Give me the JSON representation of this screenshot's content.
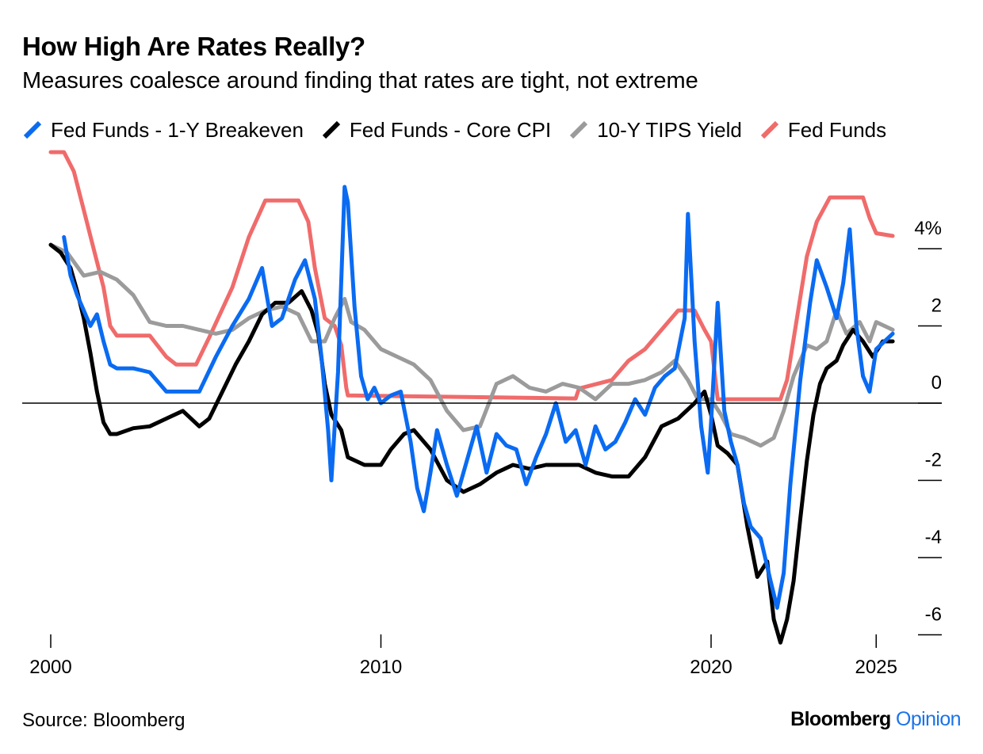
{
  "colors": {
    "fed_funds_1y_breakeven": "#0a6bf2",
    "fed_funds_core_cpi": "#000000",
    "tips_10y": "#9b9b9b",
    "fed_funds": "#f06b6b",
    "brand_blue": "#1a73e8"
  },
  "footer": {
    "source": "Source: Bloomberg",
    "brand_main": "Bloomberg",
    "brand_sub": "Opinion"
  },
  "chart_data": {
    "type": "line",
    "title": "How High Are Rates Really?",
    "subtitle": "Measures coalesce around finding that rates are tight, not extreme",
    "xlim": [
      1999.6,
      2026.4
    ],
    "ylim": [
      -6.3,
      6.6
    ],
    "x_ticks": [
      2000,
      2010,
      2020,
      2025
    ],
    "x_tick_labels": [
      "2000",
      "2010",
      "2020",
      "2025"
    ],
    "y_ticks": [
      4,
      2,
      0,
      -2,
      -4,
      -6
    ],
    "y_tick_labels": [
      "4%",
      "2",
      "0",
      "-2",
      "-4",
      "-6"
    ],
    "zero_line": true,
    "grid": false,
    "legend_position": "top-left",
    "series": [
      {
        "name": "Fed Funds",
        "color_key": "fed_funds",
        "points": [
          [
            2000.0,
            6.5
          ],
          [
            2000.4,
            6.5
          ],
          [
            2000.7,
            6.0
          ],
          [
            2001.0,
            5.0
          ],
          [
            2001.3,
            4.0
          ],
          [
            2001.6,
            3.0
          ],
          [
            2001.8,
            2.0
          ],
          [
            2002.0,
            1.75
          ],
          [
            2003.0,
            1.75
          ],
          [
            2003.5,
            1.2
          ],
          [
            2003.8,
            1.0
          ],
          [
            2004.4,
            1.0
          ],
          [
            2004.8,
            1.7
          ],
          [
            2005.5,
            3.0
          ],
          [
            2006.0,
            4.3
          ],
          [
            2006.5,
            5.25
          ],
          [
            2007.5,
            5.25
          ],
          [
            2007.8,
            4.7
          ],
          [
            2008.0,
            3.5
          ],
          [
            2008.3,
            2.2
          ],
          [
            2008.6,
            2.0
          ],
          [
            2008.8,
            1.5
          ],
          [
            2008.95,
            0.4
          ],
          [
            2009.0,
            0.2
          ],
          [
            2015.9,
            0.12
          ],
          [
            2016.0,
            0.38
          ],
          [
            2017.0,
            0.6
          ],
          [
            2017.5,
            1.1
          ],
          [
            2018.0,
            1.4
          ],
          [
            2018.5,
            1.9
          ],
          [
            2019.0,
            2.4
          ],
          [
            2019.5,
            2.4
          ],
          [
            2019.8,
            1.9
          ],
          [
            2020.0,
            1.6
          ],
          [
            2020.2,
            0.1
          ],
          [
            2022.1,
            0.1
          ],
          [
            2022.3,
            0.6
          ],
          [
            2022.6,
            2.2
          ],
          [
            2022.9,
            3.8
          ],
          [
            2023.2,
            4.7
          ],
          [
            2023.6,
            5.33
          ],
          [
            2024.6,
            5.33
          ],
          [
            2024.8,
            4.8
          ],
          [
            2025.0,
            4.4
          ],
          [
            2025.5,
            4.33
          ]
        ]
      },
      {
        "name": "10-Y TIPS Yield",
        "color_key": "tips_10y",
        "points": [
          [
            2000.0,
            4.1
          ],
          [
            2000.5,
            3.9
          ],
          [
            2001.0,
            3.3
          ],
          [
            2001.5,
            3.4
          ],
          [
            2002.0,
            3.2
          ],
          [
            2002.5,
            2.8
          ],
          [
            2003.0,
            2.1
          ],
          [
            2003.5,
            2.0
          ],
          [
            2004.0,
            2.0
          ],
          [
            2004.5,
            1.9
          ],
          [
            2005.0,
            1.8
          ],
          [
            2005.5,
            1.9
          ],
          [
            2006.0,
            2.2
          ],
          [
            2006.5,
            2.4
          ],
          [
            2007.0,
            2.5
          ],
          [
            2007.5,
            2.3
          ],
          [
            2007.9,
            1.6
          ],
          [
            2008.3,
            1.6
          ],
          [
            2008.6,
            2.2
          ],
          [
            2008.9,
            2.7
          ],
          [
            2009.1,
            2.1
          ],
          [
            2009.5,
            1.9
          ],
          [
            2010.0,
            1.4
          ],
          [
            2010.5,
            1.2
          ],
          [
            2011.0,
            1.0
          ],
          [
            2011.5,
            0.6
          ],
          [
            2012.0,
            -0.2
          ],
          [
            2012.5,
            -0.7
          ],
          [
            2013.0,
            -0.6
          ],
          [
            2013.5,
            0.5
          ],
          [
            2014.0,
            0.7
          ],
          [
            2014.5,
            0.4
          ],
          [
            2015.0,
            0.3
          ],
          [
            2015.5,
            0.5
          ],
          [
            2016.0,
            0.4
          ],
          [
            2016.5,
            0.1
          ],
          [
            2017.0,
            0.5
          ],
          [
            2017.5,
            0.5
          ],
          [
            2018.0,
            0.6
          ],
          [
            2018.5,
            0.8
          ],
          [
            2018.9,
            1.1
          ],
          [
            2019.3,
            0.6
          ],
          [
            2019.6,
            0.1
          ],
          [
            2020.0,
            0.1
          ],
          [
            2020.3,
            -0.3
          ],
          [
            2020.6,
            -0.8
          ],
          [
            2021.0,
            -0.9
          ],
          [
            2021.5,
            -1.1
          ],
          [
            2021.9,
            -0.9
          ],
          [
            2022.2,
            -0.2
          ],
          [
            2022.5,
            0.7
          ],
          [
            2022.9,
            1.5
          ],
          [
            2023.2,
            1.4
          ],
          [
            2023.5,
            1.6
          ],
          [
            2023.8,
            2.4
          ],
          [
            2024.1,
            1.8
          ],
          [
            2024.5,
            2.1
          ],
          [
            2024.8,
            1.6
          ],
          [
            2025.0,
            2.1
          ],
          [
            2025.5,
            1.9
          ]
        ]
      },
      {
        "name": "Fed Funds - Core CPI",
        "color_key": "fed_funds_core_cpi",
        "points": [
          [
            2000.0,
            4.1
          ],
          [
            2000.3,
            3.9
          ],
          [
            2000.6,
            3.5
          ],
          [
            2000.8,
            2.9
          ],
          [
            2001.0,
            2.2
          ],
          [
            2001.2,
            1.3
          ],
          [
            2001.4,
            0.3
          ],
          [
            2001.6,
            -0.5
          ],
          [
            2001.8,
            -0.8
          ],
          [
            2002.0,
            -0.8
          ],
          [
            2002.5,
            -0.65
          ],
          [
            2003.0,
            -0.6
          ],
          [
            2003.5,
            -0.4
          ],
          [
            2004.0,
            -0.2
          ],
          [
            2004.5,
            -0.6
          ],
          [
            2004.8,
            -0.4
          ],
          [
            2005.2,
            0.3
          ],
          [
            2005.6,
            1.0
          ],
          [
            2006.0,
            1.6
          ],
          [
            2006.4,
            2.3
          ],
          [
            2006.8,
            2.6
          ],
          [
            2007.2,
            2.6
          ],
          [
            2007.6,
            2.9
          ],
          [
            2007.9,
            2.4
          ],
          [
            2008.1,
            1.8
          ],
          [
            2008.3,
            0.5
          ],
          [
            2008.5,
            -0.3
          ],
          [
            2008.8,
            -0.7
          ],
          [
            2009.0,
            -1.4
          ],
          [
            2009.5,
            -1.6
          ],
          [
            2010.0,
            -1.6
          ],
          [
            2010.3,
            -1.2
          ],
          [
            2010.7,
            -0.8
          ],
          [
            2011.0,
            -0.7
          ],
          [
            2011.5,
            -1.2
          ],
          [
            2012.0,
            -2.0
          ],
          [
            2012.5,
            -2.3
          ],
          [
            2013.0,
            -2.1
          ],
          [
            2013.5,
            -1.8
          ],
          [
            2014.0,
            -1.6
          ],
          [
            2014.5,
            -1.7
          ],
          [
            2015.0,
            -1.6
          ],
          [
            2015.5,
            -1.6
          ],
          [
            2016.0,
            -1.6
          ],
          [
            2016.5,
            -1.8
          ],
          [
            2017.0,
            -1.9
          ],
          [
            2017.5,
            -1.9
          ],
          [
            2018.0,
            -1.4
          ],
          [
            2018.5,
            -0.6
          ],
          [
            2019.0,
            -0.4
          ],
          [
            2019.5,
            0.0
          ],
          [
            2019.8,
            0.3
          ],
          [
            2020.0,
            -0.3
          ],
          [
            2020.2,
            -1.1
          ],
          [
            2020.5,
            -1.3
          ],
          [
            2020.8,
            -1.6
          ],
          [
            2021.1,
            -3.2
          ],
          [
            2021.4,
            -4.5
          ],
          [
            2021.7,
            -4.1
          ],
          [
            2021.9,
            -5.6
          ],
          [
            2022.1,
            -6.2
          ],
          [
            2022.3,
            -5.6
          ],
          [
            2022.5,
            -4.6
          ],
          [
            2022.7,
            -3.0
          ],
          [
            2022.9,
            -1.5
          ],
          [
            2023.1,
            -0.3
          ],
          [
            2023.3,
            0.5
          ],
          [
            2023.5,
            0.9
          ],
          [
            2023.8,
            1.1
          ],
          [
            2024.0,
            1.5
          ],
          [
            2024.3,
            1.9
          ],
          [
            2024.6,
            1.6
          ],
          [
            2024.9,
            1.2
          ],
          [
            2025.2,
            1.6
          ],
          [
            2025.5,
            1.6
          ]
        ]
      },
      {
        "name": "Fed Funds - 1-Y Breakeven",
        "color_key": "fed_funds_1y_breakeven",
        "points": [
          [
            2000.4,
            4.3
          ],
          [
            2000.6,
            3.3
          ],
          [
            2000.8,
            2.8
          ],
          [
            2001.0,
            2.4
          ],
          [
            2001.2,
            2.0
          ],
          [
            2001.4,
            2.3
          ],
          [
            2001.6,
            1.6
          ],
          [
            2001.8,
            1.0
          ],
          [
            2002.0,
            0.9
          ],
          [
            2002.5,
            0.9
          ],
          [
            2003.0,
            0.8
          ],
          [
            2003.5,
            0.3
          ],
          [
            2004.0,
            0.3
          ],
          [
            2004.5,
            0.3
          ],
          [
            2005.0,
            1.2
          ],
          [
            2005.5,
            2.0
          ],
          [
            2006.0,
            2.7
          ],
          [
            2006.4,
            3.5
          ],
          [
            2006.7,
            2.0
          ],
          [
            2007.0,
            2.2
          ],
          [
            2007.4,
            3.2
          ],
          [
            2007.7,
            3.7
          ],
          [
            2008.0,
            2.7
          ],
          [
            2008.2,
            1.2
          ],
          [
            2008.4,
            -0.7
          ],
          [
            2008.5,
            -2.0
          ],
          [
            2008.7,
            0.8
          ],
          [
            2008.9,
            5.6
          ],
          [
            2009.0,
            5.2
          ],
          [
            2009.2,
            2.5
          ],
          [
            2009.4,
            0.7
          ],
          [
            2009.6,
            0.1
          ],
          [
            2009.8,
            0.4
          ],
          [
            2010.0,
            0.0
          ],
          [
            2010.3,
            0.2
          ],
          [
            2010.6,
            0.3
          ],
          [
            2010.9,
            -1.0
          ],
          [
            2011.1,
            -2.2
          ],
          [
            2011.3,
            -2.8
          ],
          [
            2011.5,
            -1.8
          ],
          [
            2011.7,
            -0.7
          ],
          [
            2012.0,
            -1.6
          ],
          [
            2012.3,
            -2.4
          ],
          [
            2012.6,
            -1.5
          ],
          [
            2012.9,
            -0.6
          ],
          [
            2013.2,
            -1.8
          ],
          [
            2013.5,
            -0.8
          ],
          [
            2013.8,
            -1.1
          ],
          [
            2014.1,
            -1.2
          ],
          [
            2014.4,
            -2.1
          ],
          [
            2014.7,
            -1.4
          ],
          [
            2015.0,
            -0.8
          ],
          [
            2015.3,
            0.0
          ],
          [
            2015.6,
            -1.0
          ],
          [
            2015.9,
            -0.7
          ],
          [
            2016.2,
            -1.6
          ],
          [
            2016.5,
            -0.6
          ],
          [
            2016.8,
            -1.2
          ],
          [
            2017.1,
            -1.0
          ],
          [
            2017.4,
            -0.5
          ],
          [
            2017.7,
            0.1
          ],
          [
            2018.0,
            -0.3
          ],
          [
            2018.3,
            0.4
          ],
          [
            2018.6,
            0.7
          ],
          [
            2018.9,
            0.9
          ],
          [
            2019.2,
            2.2
          ],
          [
            2019.3,
            4.9
          ],
          [
            2019.5,
            1.6
          ],
          [
            2019.7,
            -0.6
          ],
          [
            2019.9,
            -1.8
          ],
          [
            2020.0,
            -0.5
          ],
          [
            2020.2,
            2.6
          ],
          [
            2020.4,
            -0.2
          ],
          [
            2020.6,
            -1.0
          ],
          [
            2020.8,
            -1.6
          ],
          [
            2021.0,
            -2.6
          ],
          [
            2021.2,
            -3.2
          ],
          [
            2021.5,
            -3.5
          ],
          [
            2021.8,
            -4.6
          ],
          [
            2022.0,
            -5.3
          ],
          [
            2022.2,
            -4.4
          ],
          [
            2022.4,
            -2.1
          ],
          [
            2022.7,
            0.6
          ],
          [
            2023.0,
            2.6
          ],
          [
            2023.2,
            3.7
          ],
          [
            2023.5,
            3.0
          ],
          [
            2023.8,
            2.2
          ],
          [
            2024.0,
            3.1
          ],
          [
            2024.2,
            4.5
          ],
          [
            2024.4,
            2.0
          ],
          [
            2024.6,
            0.7
          ],
          [
            2024.8,
            0.3
          ],
          [
            2025.0,
            1.4
          ],
          [
            2025.5,
            1.8
          ]
        ]
      }
    ]
  }
}
